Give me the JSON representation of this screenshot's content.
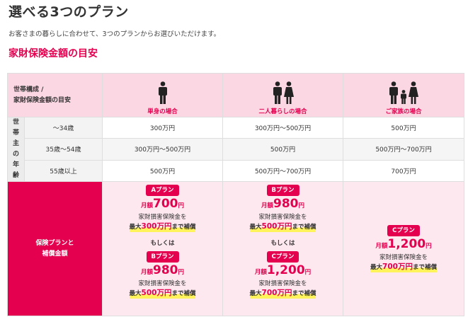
{
  "page": {
    "title": "選べる3つのプラン",
    "intro": "お客さまの暮らしに合わせて、3つのプランからお選びいただけます。",
    "section_title": "家財保険金額の目安"
  },
  "table": {
    "header_label_line1": "世帯構成 /",
    "header_label_line2": "家財保険金額の目安",
    "columns": [
      {
        "label": "単身の場合",
        "icon": "single-person-icon"
      },
      {
        "label": "二人暮らしの場合",
        "icon": "couple-icon"
      },
      {
        "label": "ご家族の場合",
        "icon": "family-icon"
      }
    ],
    "side_label": [
      "世",
      "帯",
      "主",
      "の",
      "年",
      "齢"
    ],
    "rows": [
      {
        "age": "〜34歳",
        "values": [
          "300万円",
          "300万円〜500万円",
          "500万円"
        ]
      },
      {
        "age": "35歳〜54歳",
        "values": [
          "300万円〜500万円",
          "500万円",
          "500万円〜700万円"
        ]
      },
      {
        "age": "55歳以上",
        "values": [
          "500万円",
          "500万円〜700万円",
          "700万円"
        ]
      }
    ],
    "plan_row_label_line1": "保険プランと",
    "plan_row_label_line2": "補償金額",
    "or_text": "もしくは",
    "plans": {
      "A": {
        "badge": "Aプラン",
        "prefix": "月額",
        "amount": "700",
        "unit": "円",
        "desc": "家財損害保険金を",
        "limit_pre": "最大",
        "limit_amount": "300万円",
        "limit_post": "まで補償"
      },
      "B": {
        "badge": "Bプラン",
        "prefix": "月額",
        "amount": "980",
        "unit": "円",
        "desc": "家財損害保険金を",
        "limit_pre": "最大",
        "limit_amount": "500万円",
        "limit_post": "まで補償"
      },
      "C": {
        "badge": "Cプラン",
        "prefix": "月額",
        "amount": "1,200",
        "unit": "円",
        "desc": "家財損害保険金を",
        "limit_pre": "最大",
        "limit_amount": "700万円",
        "limit_post": "まで補償"
      }
    }
  },
  "colors": {
    "accent": "#e4004f",
    "header_bg": "#fbd7e3",
    "plan_bg": "#fde8ef",
    "highlight": "#fff35c"
  }
}
